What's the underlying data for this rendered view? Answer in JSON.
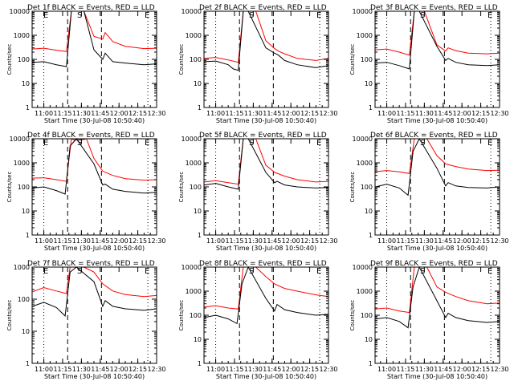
{
  "chart_data": [
    {
      "type": "line",
      "title": "Det 1f BLACK = Events, RED = LLD",
      "xlabel": "Start Time (30-Jul-08 10:50:40)",
      "ylabel": "Counts/sec",
      "yscale": "log",
      "ylim": [
        1,
        10000
      ],
      "y_ticks": [
        "1",
        "10",
        "100",
        "1000",
        "10000"
      ],
      "x_ticks": [
        "11:00",
        "11:15",
        "11:30",
        "11:45",
        "12:00",
        "12:15",
        "12:30"
      ],
      "markers": [
        "E",
        "S",
        "E"
      ],
      "series": [
        {
          "color": "#ff0000",
          "x": [
            "10:51",
            "11:00",
            "11:10",
            "11:18",
            "11:22",
            "11:27",
            "11:32",
            "11:40",
            "11:47",
            "11:49",
            "11:55",
            "12:05",
            "12:20",
            "12:30"
          ],
          "y": [
            270,
            290,
            240,
            210,
            10000,
            10000,
            10000,
            900,
            700,
            1300,
            550,
            350,
            280,
            290
          ]
        },
        {
          "color": "#000000",
          "x": [
            "10:51",
            "11:00",
            "11:10",
            "11:18",
            "11:22",
            "11:27",
            "11:32",
            "11:40",
            "11:47",
            "11:49",
            "11:55",
            "12:05",
            "12:20",
            "12:30"
          ],
          "y": [
            75,
            80,
            60,
            50,
            10000,
            10000,
            10000,
            250,
            100,
            180,
            80,
            70,
            60,
            65
          ]
        }
      ]
    },
    {
      "type": "line",
      "title": "Det 2f BLACK = Events, RED = LLD",
      "xlabel": "Start Time (30-Jul-08 10:50:40)",
      "ylabel": "Counts/sec",
      "yscale": "log",
      "ylim": [
        1,
        10000
      ],
      "y_ticks": [
        "1",
        "10",
        "100",
        "1000",
        "10000"
      ],
      "x_ticks": [
        "11:00",
        "11:15",
        "11:30",
        "11:45",
        "12:00",
        "12:15",
        "12:30"
      ],
      "markers": [
        "S",
        "E"
      ],
      "series": [
        {
          "color": "#ff0000",
          "x": [
            "10:51",
            "11:00",
            "11:10",
            "11:18",
            "11:22",
            "11:26",
            "11:32",
            "11:40",
            "11:47",
            "11:50",
            "11:55",
            "12:05",
            "12:20",
            "12:30"
          ],
          "y": [
            110,
            120,
            95,
            75,
            10000,
            10000,
            10000,
            600,
            280,
            220,
            170,
            110,
            90,
            110
          ]
        },
        {
          "color": "#000000",
          "x": [
            "10:51",
            "11:00",
            "11:10",
            "11:14",
            "11:18",
            "11:22",
            "11:26",
            "11:40",
            "11:47",
            "11:50",
            "11:55",
            "12:05",
            "12:20",
            "12:30"
          ],
          "y": [
            80,
            85,
            60,
            40,
            35,
            10000,
            10000,
            300,
            180,
            150,
            90,
            60,
            45,
            55
          ]
        }
      ]
    },
    {
      "type": "line",
      "title": "Det 3f BLACK = Events, RED = LLD",
      "xlabel": "Start Time (30-Jul-08 10:50:40)",
      "ylabel": "Counts/sec",
      "yscale": "log",
      "ylim": [
        1,
        10000
      ],
      "y_ticks": [
        "1",
        "10",
        "100",
        "1000",
        "10000"
      ],
      "x_ticks": [
        "11:00",
        "11:15",
        "11:30",
        "11:45",
        "12:00",
        "12:15",
        "12:30"
      ],
      "markers": [
        "S",
        "E"
      ],
      "series": [
        {
          "color": "#ff0000",
          "x": [
            "10:51",
            "11:00",
            "11:10",
            "11:18",
            "11:22",
            "11:26",
            "11:30",
            "11:40",
            "11:47",
            "11:49",
            "11:55",
            "12:05",
            "12:20",
            "12:30"
          ],
          "y": [
            250,
            270,
            200,
            150,
            10000,
            10000,
            10000,
            400,
            220,
            300,
            230,
            180,
            170,
            180
          ]
        },
        {
          "color": "#000000",
          "x": [
            "10:51",
            "11:00",
            "11:10",
            "11:18",
            "11:22",
            "11:26",
            "11:40",
            "11:47",
            "11:49",
            "11:55",
            "12:05",
            "12:20",
            "12:30"
          ],
          "y": [
            70,
            75,
            55,
            40,
            10000,
            10000,
            350,
            90,
            110,
            75,
            60,
            55,
            60
          ]
        }
      ]
    },
    {
      "type": "line",
      "title": "Det 4f BLACK = Events, RED = LLD",
      "xlabel": "Start Time (30-Jul-08 10:50:40)",
      "ylabel": "Counts/sec",
      "yscale": "log",
      "ylim": [
        1,
        10000
      ],
      "y_ticks": [
        "1",
        "10",
        "100",
        "1000",
        "10000"
      ],
      "x_ticks": [
        "11:00",
        "11:15",
        "11:30",
        "11:45",
        "12:00",
        "12:15",
        "12:30"
      ],
      "markers": [
        "E",
        "S",
        "E"
      ],
      "series": [
        {
          "color": "#ff0000",
          "x": [
            "10:51",
            "11:00",
            "11:10",
            "11:18",
            "11:22",
            "11:25",
            "11:28",
            "11:31",
            "11:34",
            "11:40",
            "11:47",
            "11:55",
            "12:05",
            "12:20",
            "12:30"
          ],
          "y": [
            230,
            240,
            200,
            170,
            10000,
            8500,
            10000,
            9000,
            10000,
            1500,
            450,
            300,
            220,
            190,
            200
          ]
        },
        {
          "color": "#000000",
          "x": [
            "10:51",
            "11:00",
            "11:10",
            "11:17",
            "11:21",
            "11:26",
            "11:40",
            "11:47",
            "11:49",
            "11:55",
            "12:05",
            "12:20",
            "12:30"
          ],
          "y": [
            90,
            100,
            70,
            50,
            5000,
            10000,
            900,
            120,
            130,
            80,
            65,
            55,
            60
          ]
        }
      ]
    },
    {
      "type": "line",
      "title": "Det 5f BLACK = Events, RED = LLD",
      "xlabel": "Start Time (30-Jul-08 10:50:40)",
      "ylabel": "Counts/sec",
      "yscale": "log",
      "ylim": [
        1,
        10000
      ],
      "y_ticks": [
        "1",
        "10",
        "100",
        "1000",
        "10000"
      ],
      "x_ticks": [
        "11:00",
        "11:15",
        "11:30",
        "11:45",
        "12:00",
        "12:15",
        "12:30"
      ],
      "markers": [
        "S",
        "E"
      ],
      "series": [
        {
          "color": "#ff0000",
          "x": [
            "10:51",
            "11:00",
            "11:10",
            "11:18",
            "11:22",
            "11:26",
            "11:32",
            "11:40",
            "11:47",
            "11:55",
            "12:05",
            "12:20",
            "12:30"
          ],
          "y": [
            160,
            180,
            150,
            130,
            10000,
            10000,
            10000,
            800,
            400,
            280,
            200,
            160,
            170
          ]
        },
        {
          "color": "#000000",
          "x": [
            "10:51",
            "11:00",
            "11:10",
            "11:18",
            "11:22",
            "11:26",
            "11:40",
            "11:47",
            "11:49",
            "11:55",
            "12:05",
            "12:20",
            "12:30"
          ],
          "y": [
            120,
            140,
            100,
            80,
            10000,
            10000,
            400,
            150,
            170,
            120,
            100,
            90,
            95
          ]
        }
      ]
    },
    {
      "type": "line",
      "title": "Det 6f BLACK = Events, RED = LLD",
      "xlabel": "Start Time (30-Jul-08 10:50:40)",
      "ylabel": "Counts/sec",
      "yscale": "log",
      "ylim": [
        1,
        10000
      ],
      "y_ticks": [
        "1",
        "10",
        "100",
        "1000",
        "10000"
      ],
      "x_ticks": [
        "11:00",
        "11:15",
        "11:30",
        "11:45",
        "12:00",
        "12:15",
        "12:30"
      ],
      "markers": [
        "S",
        "E"
      ],
      "series": [
        {
          "color": "#ff0000",
          "x": [
            "10:51",
            "11:00",
            "11:10",
            "11:18",
            "11:22",
            "11:26",
            "11:32",
            "11:40",
            "11:47",
            "11:55",
            "12:05",
            "12:20",
            "12:30"
          ],
          "y": [
            430,
            480,
            420,
            360,
            10000,
            10000,
            10000,
            2000,
            900,
            700,
            550,
            480,
            490
          ]
        },
        {
          "color": "#000000",
          "x": [
            "10:51",
            "11:00",
            "11:10",
            "11:17",
            "11:21",
            "11:26",
            "11:40",
            "11:47",
            "11:49",
            "11:55",
            "12:05",
            "12:20",
            "12:30"
          ],
          "y": [
            100,
            130,
            90,
            45,
            3000,
            10000,
            600,
            110,
            150,
            110,
            95,
            90,
            100
          ]
        }
      ]
    },
    {
      "type": "line",
      "title": "Det 7f BLACK = Events, RED = LLD",
      "xlabel": "Start Time (30-Jul-08 10:50:40)",
      "ylabel": "Counts/sec",
      "yscale": "log",
      "ylim": [
        1,
        1000
      ],
      "y_ticks": [
        "1",
        "10",
        "100",
        "1000"
      ],
      "x_ticks": [
        "11:00",
        "11:15",
        "11:30",
        "11:45",
        "12:00",
        "12:15",
        "12:30"
      ],
      "markers": [
        "E",
        "S",
        "E"
      ],
      "series": [
        {
          "color": "#ff0000",
          "x": [
            "10:51",
            "11:00",
            "11:10",
            "11:18",
            "11:21",
            "11:26",
            "11:32",
            "11:40",
            "11:47",
            "11:55",
            "12:05",
            "12:20",
            "12:30"
          ],
          "y": [
            170,
            230,
            180,
            150,
            1000,
            1000,
            1000,
            700,
            300,
            180,
            140,
            120,
            130
          ]
        },
        {
          "color": "#000000",
          "x": [
            "10:51",
            "11:00",
            "11:10",
            "11:17",
            "11:21",
            "11:26",
            "11:40",
            "11:47",
            "11:49",
            "11:55",
            "12:05",
            "12:20",
            "12:30"
          ],
          "y": [
            60,
            80,
            55,
            30,
            700,
            1000,
            350,
            60,
            90,
            60,
            50,
            45,
            50
          ]
        }
      ]
    },
    {
      "type": "line",
      "title": "Det 8f BLACK = Events, RED = LLD",
      "xlabel": "Start Time (30-Jul-08 10:50:40)",
      "ylabel": "Counts/sec",
      "yscale": "log",
      "ylim": [
        1,
        10000
      ],
      "y_ticks": [
        "1",
        "10",
        "100",
        "1000",
        "10000"
      ],
      "x_ticks": [
        "11:00",
        "11:15",
        "11:30",
        "11:45",
        "12:00",
        "12:15",
        "12:30"
      ],
      "markers": [
        "S",
        "E"
      ],
      "series": [
        {
          "color": "#ff0000",
          "x": [
            "10:51",
            "11:00",
            "11:10",
            "11:18",
            "11:22",
            "11:26",
            "11:32",
            "11:40",
            "11:47",
            "11:55",
            "12:05",
            "12:20",
            "12:30"
          ],
          "y": [
            220,
            250,
            200,
            180,
            10000,
            10000,
            10000,
            4000,
            2000,
            1300,
            1000,
            700,
            600
          ]
        },
        {
          "color": "#000000",
          "x": [
            "10:51",
            "11:00",
            "11:10",
            "11:17",
            "11:21",
            "11:26",
            "11:40",
            "11:47",
            "11:49",
            "11:55",
            "12:05",
            "12:20",
            "12:30"
          ],
          "y": [
            80,
            100,
            70,
            45,
            2000,
            10000,
            500,
            150,
            280,
            170,
            130,
            100,
            110
          ]
        }
      ]
    },
    {
      "type": "line",
      "title": "Det 9f BLACK = Events, RED = LLD",
      "xlabel": "Start Time (30-Jul-08 10:50:40)",
      "ylabel": "Counts/sec",
      "yscale": "log",
      "ylim": [
        1,
        10000
      ],
      "y_ticks": [
        "1",
        "10",
        "100",
        "1000",
        "10000"
      ],
      "x_ticks": [
        "11:00",
        "11:15",
        "11:30",
        "11:45",
        "12:00",
        "12:15",
        "12:30"
      ],
      "markers": [
        "S",
        "E"
      ],
      "series": [
        {
          "color": "#ff0000",
          "x": [
            "10:51",
            "11:00",
            "11:10",
            "11:18",
            "11:22",
            "11:26",
            "11:32",
            "11:40",
            "11:47",
            "11:55",
            "12:05",
            "12:20",
            "12:30"
          ],
          "y": [
            180,
            200,
            150,
            130,
            10000,
            10000,
            10000,
            1500,
            900,
            600,
            400,
            300,
            320
          ]
        },
        {
          "color": "#000000",
          "x": [
            "10:51",
            "11:00",
            "11:10",
            "11:17",
            "11:21",
            "11:26",
            "11:40",
            "11:47",
            "11:49",
            "11:55",
            "12:05",
            "12:20",
            "12:30"
          ],
          "y": [
            70,
            80,
            55,
            30,
            1500,
            10000,
            400,
            80,
            120,
            80,
            60,
            50,
            55
          ]
        }
      ]
    }
  ]
}
